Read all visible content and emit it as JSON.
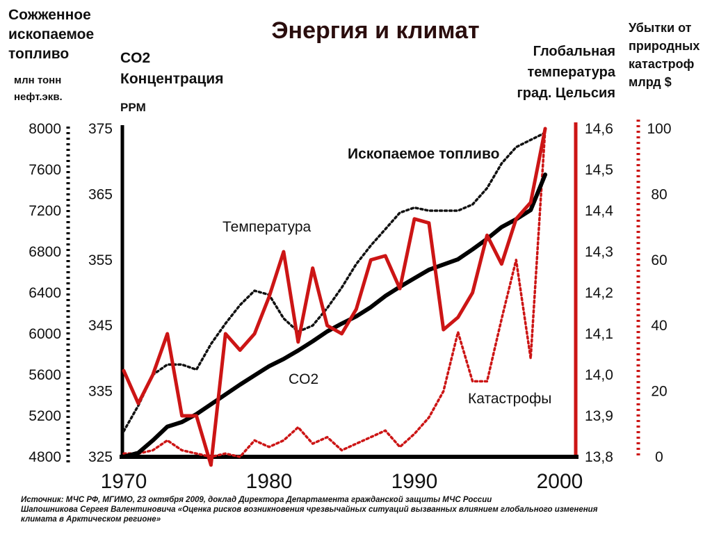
{
  "chart_data": {
    "type": "line",
    "title": "Энергия и климат",
    "axes": {
      "fuel": {
        "title_lines": [
          "Сожженное",
          "ископаемое",
          "топливо"
        ],
        "unit_lines": [
          "млн тонн",
          "нефт.экв."
        ],
        "ticks": [
          8000,
          7600,
          7200,
          6800,
          6400,
          6000,
          5600,
          5200,
          4800
        ],
        "range": [
          4800,
          8000
        ]
      },
      "co2": {
        "title_lines": [
          "CO2",
          "Концентрация"
        ],
        "unit": "PPM",
        "ticks": [
          375,
          365,
          355,
          345,
          335,
          325
        ],
        "range": [
          325,
          375
        ]
      },
      "temp": {
        "title_lines": [
          "Глобальная",
          "температура",
          "град. Цельсия"
        ],
        "ticks": [
          "14,6",
          "14,5",
          "14,4",
          "14,3",
          "14,2",
          "14,1",
          "14,0",
          "13,9",
          "13,8"
        ],
        "range": [
          13.8,
          14.6
        ]
      },
      "loss": {
        "title_lines": [
          "Убытки от",
          "природных",
          "катастроф",
          "млрд $"
        ],
        "ticks": [
          100,
          80,
          60,
          40,
          20,
          0
        ],
        "range": [
          0,
          100
        ]
      },
      "x": {
        "ticks": [
          "1970",
          "1980",
          "1990",
          "2000"
        ],
        "range": [
          1970,
          2000
        ]
      }
    },
    "series": [
      {
        "name": "Ископаемое топливо",
        "axis": "fuel",
        "color": "#111111",
        "style": "dotted",
        "x": [
          1970,
          1971,
          1972,
          1973,
          1974,
          1975,
          1976,
          1977,
          1978,
          1979,
          1980,
          1981,
          1982,
          1983,
          1984,
          1985,
          1986,
          1987,
          1988,
          1989,
          1990,
          1991,
          1992,
          1993,
          1994,
          1995,
          1996,
          1997,
          1998,
          1999
        ],
        "y": [
          5050,
          5300,
          5600,
          5700,
          5700,
          5650,
          5900,
          6100,
          6280,
          6420,
          6380,
          6150,
          6020,
          6080,
          6250,
          6450,
          6680,
          6860,
          7020,
          7180,
          7230,
          7200,
          7200,
          7200,
          7260,
          7420,
          7660,
          7820,
          7890,
          7960
        ]
      },
      {
        "name": "CO2",
        "axis": "co2",
        "color": "#000000",
        "style": "solid",
        "x": [
          1970,
          1971,
          1972,
          1973,
          1974,
          1975,
          1976,
          1977,
          1978,
          1979,
          1980,
          1981,
          1982,
          1983,
          1984,
          1985,
          1986,
          1987,
          1988,
          1989,
          1990,
          1991,
          1992,
          1993,
          1994,
          1995,
          1996,
          1997,
          1998,
          1999
        ],
        "y": [
          325.0,
          325.6,
          327.5,
          329.6,
          330.3,
          331.5,
          333.0,
          334.5,
          336.0,
          337.4,
          338.8,
          339.9,
          341.2,
          342.6,
          344.1,
          345.3,
          346.4,
          347.8,
          349.5,
          350.9,
          352.2,
          353.5,
          354.3,
          355.1,
          356.6,
          358.2,
          360.0,
          361.2,
          362.6,
          368.0
        ]
      },
      {
        "name": "Температура",
        "axis": "temp",
        "color": "#cc1515",
        "style": "solid",
        "x": [
          1970,
          1971,
          1972,
          1973,
          1974,
          1975,
          1976,
          1977,
          1978,
          1979,
          1980,
          1981,
          1982,
          1983,
          1984,
          1985,
          1986,
          1987,
          1988,
          1989,
          1990,
          1991,
          1992,
          1993,
          1994,
          1995,
          1996,
          1997,
          1998,
          1999
        ],
        "y": [
          14.01,
          13.93,
          14.0,
          14.1,
          13.9,
          13.9,
          13.78,
          14.1,
          14.06,
          14.1,
          14.19,
          14.3,
          14.08,
          14.26,
          14.12,
          14.1,
          14.16,
          14.28,
          14.29,
          14.21,
          14.38,
          14.37,
          14.11,
          14.14,
          14.2,
          14.34,
          14.27,
          14.38,
          14.42,
          14.6
        ]
      },
      {
        "name": "Катастрофы",
        "axis": "loss",
        "color": "#cc1515",
        "style": "dotted",
        "x": [
          1970,
          1971,
          1972,
          1973,
          1974,
          1975,
          1976,
          1977,
          1978,
          1979,
          1980,
          1981,
          1982,
          1983,
          1984,
          1985,
          1986,
          1987,
          1988,
          1989,
          1990,
          1991,
          1992,
          1993,
          1994,
          1995,
          1996,
          1997,
          1998,
          1999
        ],
        "y": [
          1,
          1,
          2,
          5,
          2,
          1,
          0,
          1,
          0,
          5,
          3,
          5,
          9,
          4,
          6,
          2,
          4,
          6,
          8,
          3,
          7,
          12,
          20,
          38,
          23,
          23,
          42,
          60,
          30,
          100
        ]
      }
    ],
    "annotations": {
      "fuel_label": "Ископаемое топливо",
      "temp_label": "Температура",
      "co2_label": "CO2",
      "disaster_label": "Катастрофы"
    },
    "colors": {
      "red": "#cc1515",
      "black": "#000000",
      "title": "#2a0d0d"
    }
  },
  "source": {
    "line1": "Источник: МЧС РФ, МГИМО, 23 октября 2009, доклад Директора Департамента гражданской защиты МЧС России",
    "line2": "Шапошникова Сергея Валентиновича «Оценка рисков возникновения чрезвычайных ситуаций вызванных влиянием глобального изменения",
    "line3": "климата  в Арктическом регионе»"
  }
}
